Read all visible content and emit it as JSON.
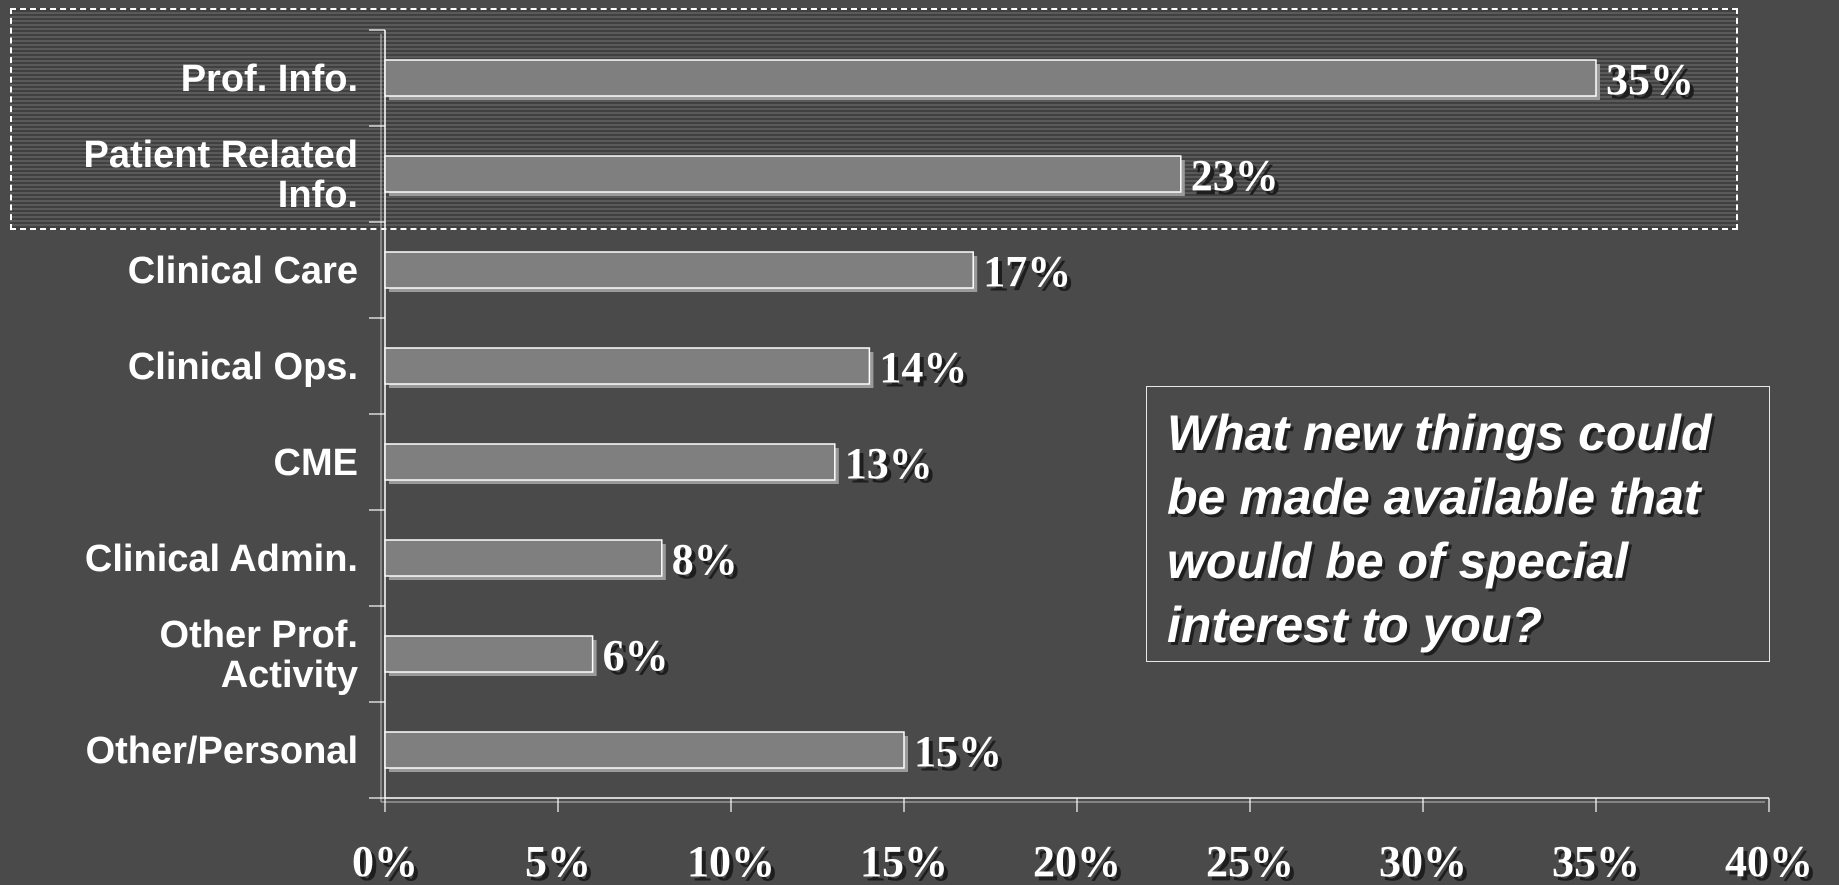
{
  "chart_data": {
    "type": "bar",
    "orientation": "horizontal",
    "categories": [
      "Prof. Info.",
      "Patient Related Info.",
      "Clinical Care",
      "Clinical Ops.",
      "CME",
      "Clinical Admin.",
      "Other Prof. Activity",
      "Other/Personal"
    ],
    "category_label_lines": [
      [
        "Prof. Info."
      ],
      [
        "Patient Related",
        "Info."
      ],
      [
        "Clinical Care"
      ],
      [
        "Clinical Ops."
      ],
      [
        "CME"
      ],
      [
        "Clinical Admin."
      ],
      [
        "Other Prof.",
        "Activity"
      ],
      [
        "Other/Personal"
      ]
    ],
    "values": [
      35,
      23,
      17,
      14,
      13,
      8,
      6,
      15
    ],
    "value_labels": [
      "35%",
      "23%",
      "17%",
      "14%",
      "13%",
      "8%",
      "6%",
      "15%"
    ],
    "xlim": [
      0,
      40
    ],
    "x_ticks": [
      0,
      5,
      10,
      15,
      20,
      25,
      30,
      35,
      40
    ],
    "x_tick_labels": [
      "0%",
      "5%",
      "10%",
      "15%",
      "20%",
      "25%",
      "30%",
      "35%",
      "40%"
    ],
    "highlighted_categories": [
      "Prof. Info.",
      "Patient Related Info."
    ],
    "grid": false,
    "legend": "none",
    "colors": {
      "background": "#4a4a4a",
      "bar": "#7f7f7f",
      "bar_outline": "#ffffff",
      "text": "#ffffff"
    }
  },
  "question": {
    "text": "What new things could be made available that would be of special interest to you?",
    "lines": [
      "What new things could",
      "be made available that",
      "would be of special",
      "interest to you?"
    ]
  }
}
